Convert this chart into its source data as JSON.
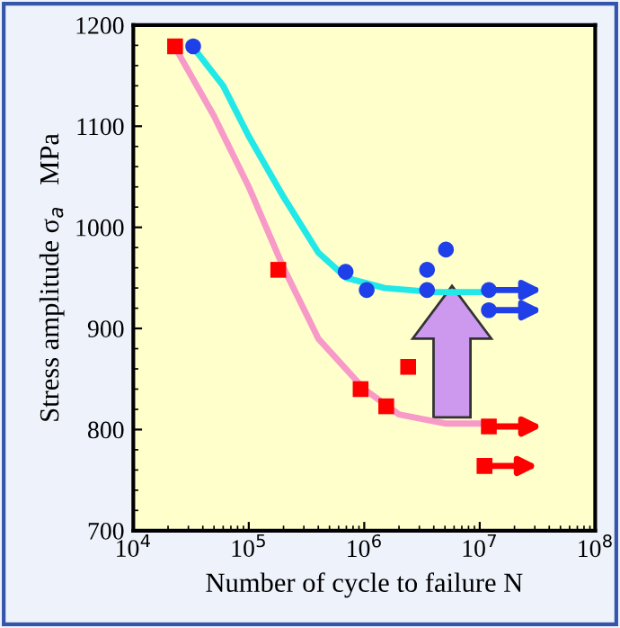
{
  "chart_data": {
    "type": "scatter",
    "xlabel": "Number of cycle to failure N",
    "ylabel": "Stress amplitude σ$_{a}$   MPa",
    "log": "x",
    "xlim": [
      10000,
      100000000
    ],
    "ylim": [
      700,
      1200
    ],
    "xticks": [
      {
        "value": 10000,
        "label": "10$^{4}$"
      },
      {
        "value": 100000,
        "label": "10$^{5}$"
      },
      {
        "value": 1000000,
        "label": "10$^{6}$"
      },
      {
        "value": 10000000,
        "label": "10$^{7}$"
      },
      {
        "value": 100000000,
        "label": "10$^{8}$"
      }
    ],
    "yticks": [
      700,
      800,
      900,
      1000,
      1100,
      1200
    ],
    "grid": false,
    "series": [
      {
        "type": "line",
        "color": "#f79ac8",
        "marker": "none",
        "line_style": "solid",
        "x": [
          23000,
          50000,
          100000,
          200000,
          400000,
          1000000,
          2000000,
          5000000,
          12000000
        ],
        "values": [
          1178,
          1110,
          1040,
          960,
          890,
          840,
          815,
          806,
          806
        ]
      },
      {
        "type": "line",
        "color": "#22e8e8",
        "marker": "none",
        "line_style": "solid",
        "x": [
          33000,
          60000,
          100000,
          200000,
          400000,
          700000,
          1500000,
          4000000,
          12000000
        ],
        "values": [
          1178,
          1140,
          1090,
          1030,
          975,
          950,
          940,
          936,
          936
        ]
      },
      {
        "color": "#ff0000",
        "marker": "square",
        "x": [
          23000,
          180000,
          930000,
          1550000,
          2400000,
          12000000,
          11000000
        ],
        "values": [
          1179,
          958,
          840,
          823,
          862,
          803,
          764
        ]
      },
      {
        "color": "#1f3fe8",
        "marker": "circle",
        "x": [
          33000,
          690000,
          1050000,
          3500000,
          3500000,
          5100000,
          12000000,
          12000000
        ],
        "values": [
          1179,
          956,
          938,
          958,
          938,
          978,
          938,
          918
        ]
      }
    ]
  }
}
